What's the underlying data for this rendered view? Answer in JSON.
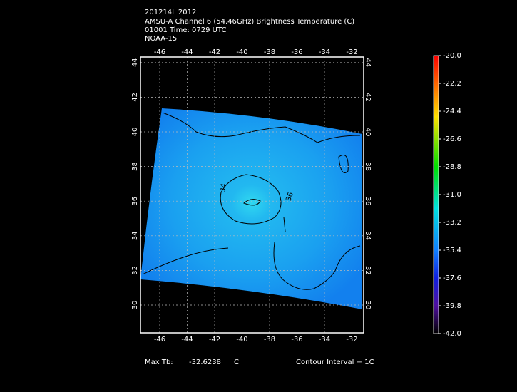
{
  "header": {
    "lines": [
      "201214L 2012",
      "AMSU-A Channel 6 (54.46GHz) Brightness Temperature (C)",
      "01001 Time: 0729 UTC",
      "NOAA-15"
    ]
  },
  "map": {
    "lon_ticks": [
      -46,
      -44,
      -42,
      -40,
      -38,
      -36,
      -34,
      -32
    ],
    "lat_ticks": [
      44,
      42,
      40,
      38,
      36,
      34,
      32,
      30
    ],
    "contour_labels": [
      "34",
      "36"
    ]
  },
  "colorbar": {
    "ticks": [
      {
        "value": -20,
        "label": "-20.0"
      },
      -22.2,
      -24.4,
      -26.6,
      -28.8,
      {
        "value": -31,
        "label": "-31.0"
      },
      -33.2,
      -35.4,
      -37.6,
      -39.8,
      {
        "value": -42,
        "label": "-42.0"
      }
    ]
  },
  "footer": {
    "max_label": "Max Tb:",
    "max_value": -32.6238,
    "unit": "C",
    "contour_interval": "Contour Interval = 1C"
  }
}
